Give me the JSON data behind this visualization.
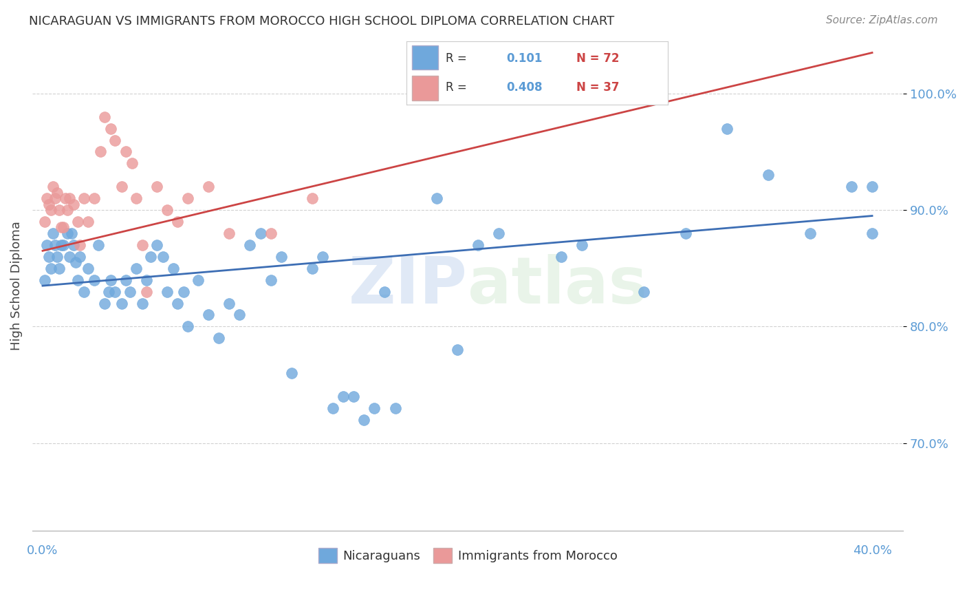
{
  "title": "NICARAGUAN VS IMMIGRANTS FROM MOROCCO HIGH SCHOOL DIPLOMA CORRELATION CHART",
  "source": "Source: ZipAtlas.com",
  "ylabel": "High School Diploma",
  "blue_color": "#6fa8dc",
  "pink_color": "#ea9999",
  "blue_line_color": "#3d6eb4",
  "pink_line_color": "#cc4444",
  "watermark_zip": "ZIP",
  "watermark_atlas": "atlas",
  "legend_r1": "R = ",
  "legend_v1": "0.101",
  "legend_n1": "N = 72",
  "legend_r2": "R = ",
  "legend_v2": "0.408",
  "legend_n2": "N = 37",
  "blue_scatter_x": [
    0.001,
    0.002,
    0.003,
    0.004,
    0.005,
    0.006,
    0.007,
    0.008,
    0.009,
    0.01,
    0.012,
    0.013,
    0.014,
    0.015,
    0.016,
    0.017,
    0.018,
    0.02,
    0.022,
    0.025,
    0.027,
    0.03,
    0.032,
    0.033,
    0.035,
    0.038,
    0.04,
    0.042,
    0.045,
    0.048,
    0.05,
    0.052,
    0.055,
    0.058,
    0.06,
    0.063,
    0.065,
    0.068,
    0.07,
    0.075,
    0.08,
    0.085,
    0.09,
    0.095,
    0.1,
    0.105,
    0.11,
    0.115,
    0.12,
    0.13,
    0.135,
    0.14,
    0.145,
    0.15,
    0.155,
    0.16,
    0.165,
    0.17,
    0.19,
    0.2,
    0.21,
    0.22,
    0.25,
    0.26,
    0.29,
    0.31,
    0.33,
    0.35,
    0.37,
    0.39,
    0.4,
    0.4
  ],
  "blue_scatter_y": [
    0.84,
    0.87,
    0.86,
    0.85,
    0.88,
    0.87,
    0.86,
    0.85,
    0.87,
    0.87,
    0.88,
    0.86,
    0.88,
    0.87,
    0.855,
    0.84,
    0.86,
    0.83,
    0.85,
    0.84,
    0.87,
    0.82,
    0.83,
    0.84,
    0.83,
    0.82,
    0.84,
    0.83,
    0.85,
    0.82,
    0.84,
    0.86,
    0.87,
    0.86,
    0.83,
    0.85,
    0.82,
    0.83,
    0.8,
    0.84,
    0.81,
    0.79,
    0.82,
    0.81,
    0.87,
    0.88,
    0.84,
    0.86,
    0.76,
    0.85,
    0.86,
    0.73,
    0.74,
    0.74,
    0.72,
    0.73,
    0.83,
    0.73,
    0.91,
    0.78,
    0.87,
    0.88,
    0.86,
    0.87,
    0.83,
    0.88,
    0.97,
    0.93,
    0.88,
    0.92,
    0.92,
    0.88
  ],
  "pink_scatter_x": [
    0.001,
    0.002,
    0.003,
    0.004,
    0.005,
    0.006,
    0.007,
    0.008,
    0.009,
    0.01,
    0.011,
    0.012,
    0.013,
    0.015,
    0.017,
    0.018,
    0.02,
    0.022,
    0.025,
    0.028,
    0.03,
    0.033,
    0.035,
    0.038,
    0.04,
    0.043,
    0.045,
    0.048,
    0.05,
    0.055,
    0.06,
    0.065,
    0.07,
    0.08,
    0.09,
    0.11,
    0.13
  ],
  "pink_scatter_y": [
    0.89,
    0.91,
    0.905,
    0.9,
    0.92,
    0.91,
    0.915,
    0.9,
    0.885,
    0.885,
    0.91,
    0.9,
    0.91,
    0.905,
    0.89,
    0.87,
    0.91,
    0.89,
    0.91,
    0.95,
    0.98,
    0.97,
    0.96,
    0.92,
    0.95,
    0.94,
    0.91,
    0.87,
    0.83,
    0.92,
    0.9,
    0.89,
    0.91,
    0.92,
    0.88,
    0.88,
    0.91
  ],
  "blue_line_x0": 0.0,
  "blue_line_x1": 0.4,
  "blue_line_y0": 0.835,
  "blue_line_y1": 0.895,
  "pink_line_x0": 0.0,
  "pink_line_x1": 0.4,
  "pink_line_y0": 0.865,
  "pink_line_y1": 1.035,
  "xmin": -0.005,
  "xmax": 0.415,
  "ymin": 0.625,
  "ymax": 1.045,
  "yticks": [
    0.7,
    0.8,
    0.9,
    1.0
  ],
  "ytick_labels": [
    "70.0%",
    "80.0%",
    "90.0%",
    "100.0%"
  ]
}
